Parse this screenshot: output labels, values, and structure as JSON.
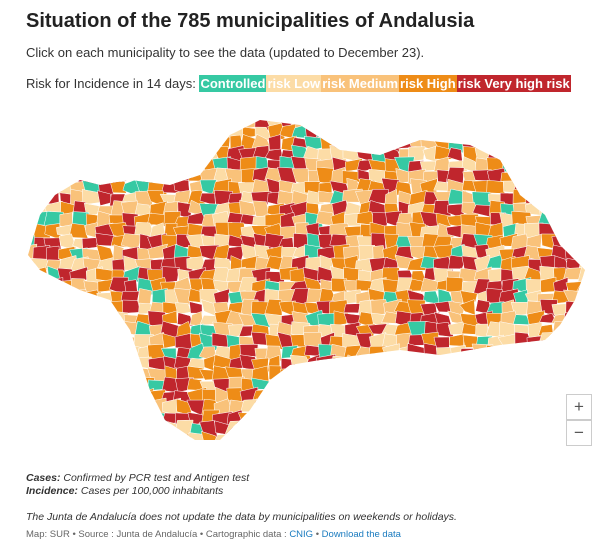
{
  "header": {
    "title": "Situation of the 785 municipalities of Andalusia",
    "subtitle": "Click on each municipality to see the data (updated to December 23)."
  },
  "legend": {
    "label": "Risk for Incidence in 14 days:",
    "items": [
      {
        "label": "Controlled",
        "color": "#36c9a3"
      },
      {
        "label": "risk Low",
        "color": "#fcdca6"
      },
      {
        "label": "risk Medium",
        "color": "#f9c27a"
      },
      {
        "label": "risk High",
        "color": "#ee8c17"
      },
      {
        "label": "risk Very high risk",
        "color": "#c0262d"
      }
    ]
  },
  "zoom": {
    "in": "+",
    "out": "−"
  },
  "notes": {
    "cases_label": "Cases:",
    "cases_text": " Confirmed by PCR test and Antigen test",
    "incidence_label": "Incidence:",
    "incidence_text": " Cases per 100,000 inhabitants",
    "disclaimer": "The Junta de Andalucía does not update the data by municipalities on weekends or holidays."
  },
  "footer": {
    "map": "Map: SUR",
    "source": " • Source : Junta de Andalucía • Cartographic data : ",
    "cnig": "CNIG",
    "sep": " • ",
    "download": "Download the data"
  }
}
